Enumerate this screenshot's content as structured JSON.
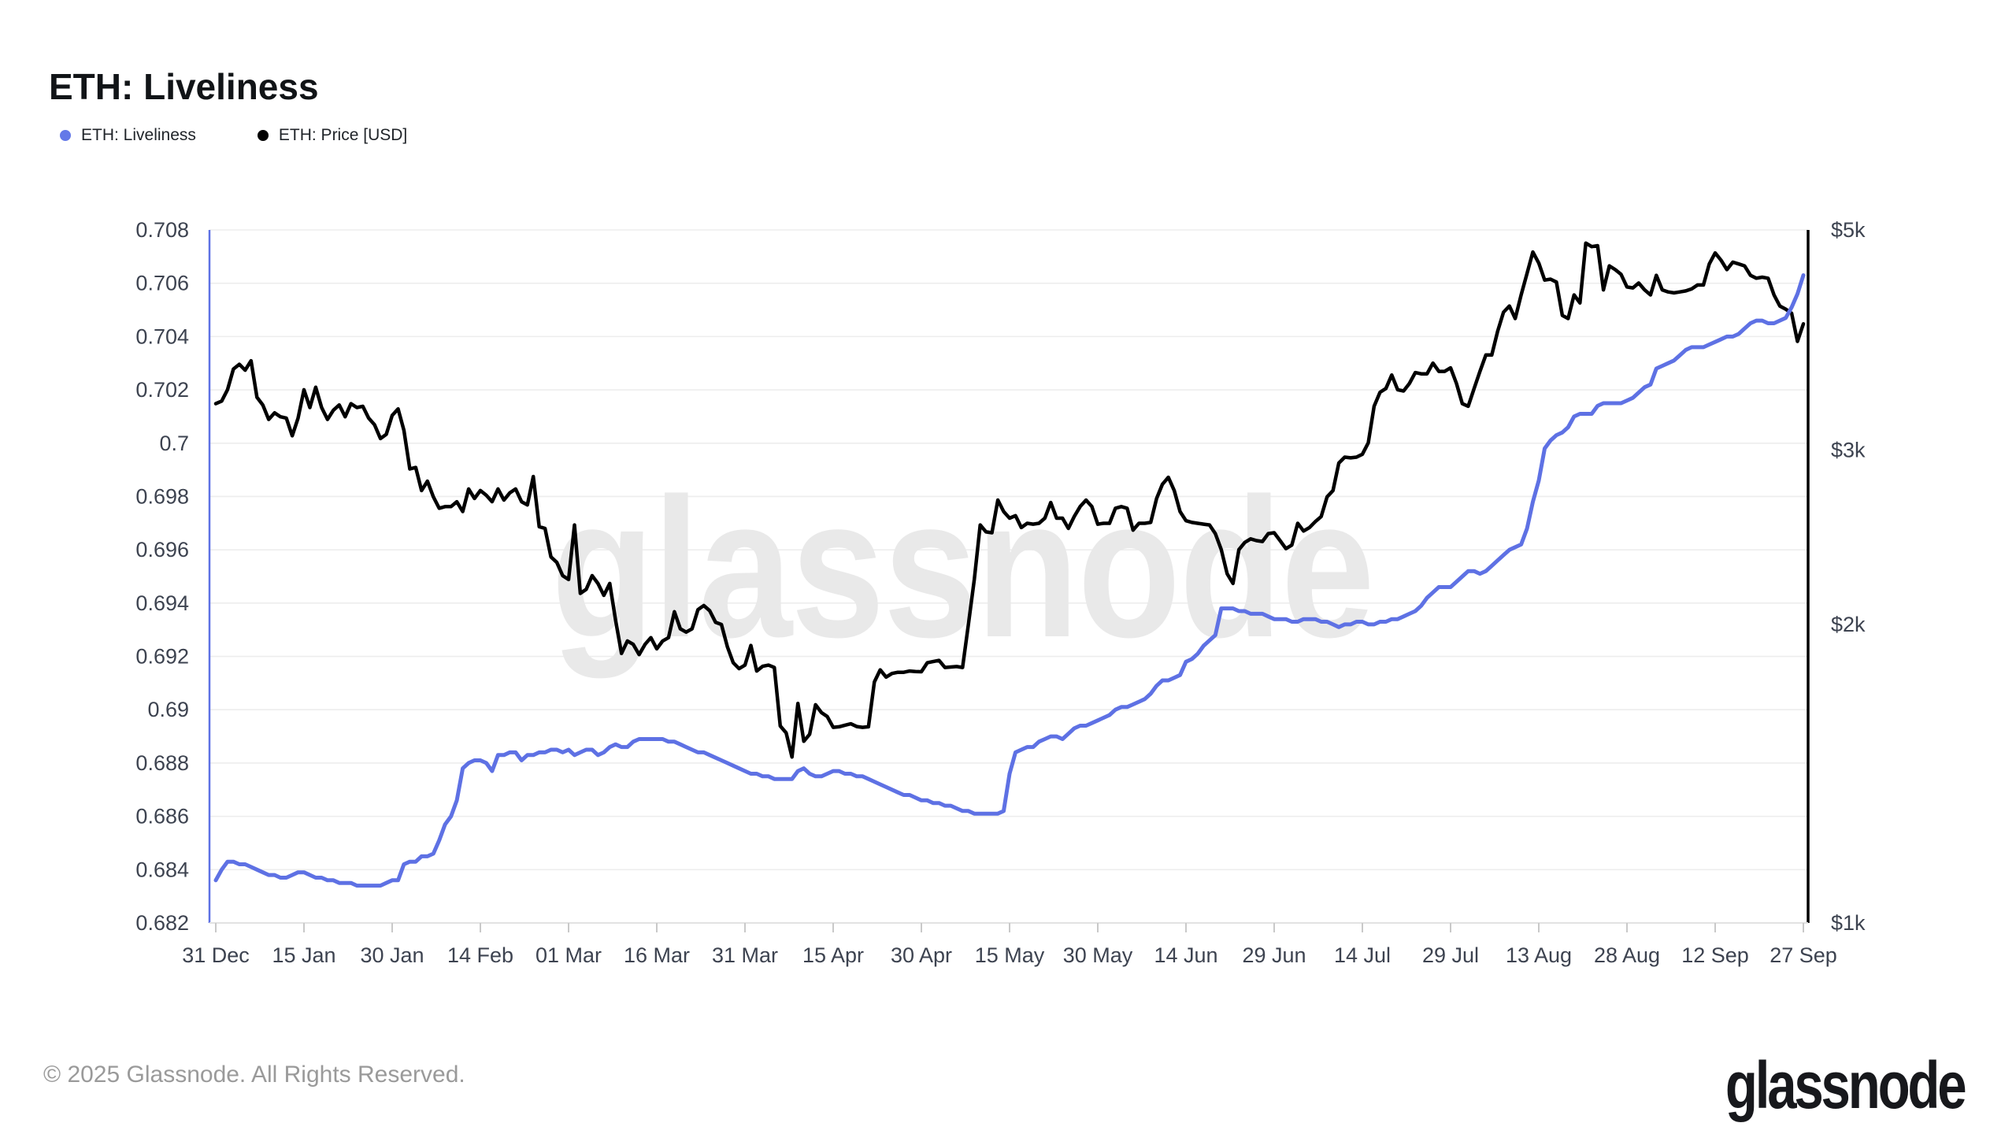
{
  "header": {
    "title": "ETH: Liveliness"
  },
  "legend": [
    {
      "label": "ETH: Liveliness",
      "color": "#6479E8"
    },
    {
      "label": "ETH: Price [USD]",
      "color": "#000000"
    }
  ],
  "watermark": {
    "text": "glassnode"
  },
  "footer": {
    "copyright": "© 2025 Glassnode. All Rights Reserved.",
    "logo": "glassnode"
  },
  "colors": {
    "liveliness_line": "#5E71E4",
    "price_line": "#000000",
    "grid_line": "#ededed",
    "axis_bottom": "#e2e2e2",
    "tick_mark": "#c9c9c9",
    "tick_label": "#3d4350",
    "watermark": "#e9e9e9"
  },
  "chart_data": {
    "type": "line",
    "title": "ETH: Liveliness",
    "grid": "horizontal",
    "legend_position": "top-left",
    "x_axis": {
      "kind": "date",
      "start": "31 Dec",
      "end": "27 Sep",
      "days_span": 270,
      "tick_interval_days": 15,
      "tick_labels": [
        "31 Dec",
        "15 Jan",
        "30 Jan",
        "14 Feb",
        "01 Mar",
        "16 Mar",
        "31 Mar",
        "15 Apr",
        "30 Apr",
        "15 May",
        "30 May",
        "14 Jun",
        "29 Jun",
        "14 Jul",
        "29 Jul",
        "13 Aug",
        "28 Aug",
        "12 Sep",
        "27 Sep"
      ]
    },
    "y_left": {
      "label": "ETH: Liveliness",
      "scale": "linear",
      "min": 0.682,
      "max": 0.708,
      "ticks": [
        0.708,
        0.706,
        0.704,
        0.702,
        0.7,
        0.698,
        0.696,
        0.694,
        0.692,
        0.69,
        0.688,
        0.686,
        0.684,
        0.682
      ]
    },
    "y_right": {
      "label": "ETH: Price [USD]",
      "scale": "log",
      "min": 1000,
      "max": 5000,
      "tick_labels": [
        "$5k",
        "$3k",
        "$2k",
        "$1k"
      ],
      "tick_values": [
        5000,
        3000,
        2000,
        1000
      ]
    },
    "series": [
      {
        "name": "ETH: Liveliness",
        "axis": "left",
        "color": "#5E71E4",
        "start_day": 0,
        "day_interval": 1,
        "values": [
          0.6836,
          0.684,
          0.6843,
          0.6843,
          0.6842,
          0.6842,
          0.6841,
          0.684,
          0.6839,
          0.6838,
          0.6838,
          0.6837,
          0.6837,
          0.6838,
          0.6839,
          0.6839,
          0.6838,
          0.6837,
          0.6837,
          0.6836,
          0.6836,
          0.6835,
          0.6835,
          0.6835,
          0.6834,
          0.6834,
          0.6834,
          0.6834,
          0.6834,
          0.6835,
          0.6836,
          0.6836,
          0.6842,
          0.6843,
          0.6843,
          0.6845,
          0.6845,
          0.6846,
          0.6851,
          0.6857,
          0.686,
          0.6866,
          0.6878,
          0.688,
          0.6881,
          0.6881,
          0.688,
          0.6877,
          0.6883,
          0.6883,
          0.6884,
          0.6884,
          0.6881,
          0.6883,
          0.6883,
          0.6884,
          0.6884,
          0.6885,
          0.6885,
          0.6884,
          0.6885,
          0.6883,
          0.6884,
          0.6885,
          0.6885,
          0.6883,
          0.6884,
          0.6886,
          0.6887,
          0.6886,
          0.6886,
          0.6888,
          0.6889,
          0.6889,
          0.6889,
          0.6889,
          0.6889,
          0.6888,
          0.6888,
          0.6887,
          0.6886,
          0.6885,
          0.6884,
          0.6884,
          0.6883,
          0.6882,
          0.6881,
          0.688,
          0.6879,
          0.6878,
          0.6877,
          0.6876,
          0.6876,
          0.6875,
          0.6875,
          0.6874,
          0.6874,
          0.6874,
          0.6874,
          0.6877,
          0.6878,
          0.6876,
          0.6875,
          0.6875,
          0.6876,
          0.6877,
          0.6877,
          0.6876,
          0.6876,
          0.6875,
          0.6875,
          0.6874,
          0.6873,
          0.6872,
          0.6871,
          0.687,
          0.6869,
          0.6868,
          0.6868,
          0.6867,
          0.6866,
          0.6866,
          0.6865,
          0.6865,
          0.6864,
          0.6864,
          0.6863,
          0.6862,
          0.6862,
          0.6861,
          0.6861,
          0.6861,
          0.6861,
          0.6861,
          0.6862,
          0.6876,
          0.6884,
          0.6885,
          0.6886,
          0.6886,
          0.6888,
          0.6889,
          0.689,
          0.689,
          0.6889,
          0.6891,
          0.6893,
          0.6894,
          0.6894,
          0.6895,
          0.6896,
          0.6897,
          0.6898,
          0.69,
          0.6901,
          0.6901,
          0.6902,
          0.6903,
          0.6904,
          0.6906,
          0.6909,
          0.6911,
          0.6911,
          0.6912,
          0.6913,
          0.6918,
          0.6919,
          0.6921,
          0.6924,
          0.6926,
          0.6928,
          0.6938,
          0.6938,
          0.6938,
          0.6937,
          0.6937,
          0.6936,
          0.6936,
          0.6936,
          0.6935,
          0.6934,
          0.6934,
          0.6934,
          0.6933,
          0.6933,
          0.6934,
          0.6934,
          0.6934,
          0.6933,
          0.6933,
          0.6932,
          0.6931,
          0.6932,
          0.6932,
          0.6933,
          0.6933,
          0.6932,
          0.6932,
          0.6933,
          0.6933,
          0.6934,
          0.6934,
          0.6935,
          0.6936,
          0.6937,
          0.6939,
          0.6942,
          0.6944,
          0.6946,
          0.6946,
          0.6946,
          0.6948,
          0.695,
          0.6952,
          0.6952,
          0.6951,
          0.6952,
          0.6954,
          0.6956,
          0.6958,
          0.696,
          0.6961,
          0.6962,
          0.6968,
          0.6978,
          0.6986,
          0.6998,
          0.7001,
          0.7003,
          0.7004,
          0.7006,
          0.701,
          0.7011,
          0.7011,
          0.7011,
          0.7014,
          0.7015,
          0.7015,
          0.7015,
          0.7015,
          0.7016,
          0.7017,
          0.7019,
          0.7021,
          0.7022,
          0.7028,
          0.7029,
          0.703,
          0.7031,
          0.7033,
          0.7035,
          0.7036,
          0.7036,
          0.7036,
          0.7037,
          0.7038,
          0.7039,
          0.704,
          0.704,
          0.7041,
          0.7043,
          0.7045,
          0.7046,
          0.7046,
          0.7045,
          0.7045,
          0.7046,
          0.7047,
          0.7051,
          0.7056,
          0.7063
        ]
      },
      {
        "name": "ETH: Price [USD]",
        "axis": "right",
        "color": "#000000",
        "start_day": 0,
        "day_interval": 1,
        "values": [
          3340,
          3360,
          3450,
          3620,
          3660,
          3610,
          3690,
          3390,
          3330,
          3220,
          3270,
          3240,
          3230,
          3100,
          3230,
          3450,
          3310,
          3470,
          3310,
          3220,
          3290,
          3330,
          3240,
          3340,
          3310,
          3320,
          3230,
          3180,
          3080,
          3110,
          3250,
          3300,
          3140,
          2870,
          2880,
          2730,
          2790,
          2690,
          2620,
          2630,
          2630,
          2660,
          2600,
          2740,
          2680,
          2730,
          2700,
          2660,
          2740,
          2670,
          2715,
          2740,
          2660,
          2640,
          2820,
          2510,
          2500,
          2340,
          2310,
          2240,
          2220,
          2520,
          2150,
          2170,
          2240,
          2200,
          2140,
          2200,
          2020,
          1870,
          1925,
          1910,
          1865,
          1910,
          1940,
          1890,
          1925,
          1940,
          2060,
          1980,
          1965,
          1980,
          2070,
          2090,
          2065,
          2010,
          2000,
          1900,
          1830,
          1805,
          1820,
          1905,
          1795,
          1815,
          1820,
          1810,
          1580,
          1555,
          1470,
          1665,
          1525,
          1550,
          1660,
          1630,
          1615,
          1575,
          1577,
          1583,
          1588,
          1578,
          1575,
          1577,
          1750,
          1800,
          1770,
          1785,
          1790,
          1790,
          1795,
          1793,
          1792,
          1830,
          1835,
          1840,
          1810,
          1812,
          1814,
          1810,
          2000,
          2220,
          2520,
          2480,
          2475,
          2670,
          2600,
          2560,
          2575,
          2505,
          2530,
          2525,
          2530,
          2560,
          2655,
          2560,
          2560,
          2500,
          2570,
          2630,
          2670,
          2630,
          2525,
          2530,
          2530,
          2620,
          2630,
          2620,
          2490,
          2530,
          2530,
          2535,
          2680,
          2770,
          2815,
          2730,
          2600,
          2545,
          2535,
          2530,
          2525,
          2520,
          2470,
          2380,
          2250,
          2200,
          2380,
          2420,
          2440,
          2430,
          2425,
          2470,
          2475,
          2430,
          2385,
          2405,
          2530,
          2485,
          2505,
          2540,
          2570,
          2690,
          2730,
          2910,
          2950,
          2945,
          2950,
          2970,
          3050,
          3320,
          3430,
          3460,
          3570,
          3450,
          3440,
          3500,
          3590,
          3580,
          3580,
          3670,
          3600,
          3600,
          3630,
          3500,
          3340,
          3320,
          3460,
          3600,
          3740,
          3740,
          3950,
          4130,
          4190,
          4070,
          4300,
          4520,
          4750,
          4630,
          4450,
          4460,
          4430,
          4100,
          4070,
          4300,
          4220,
          4850,
          4810,
          4820,
          4350,
          4600,
          4560,
          4510,
          4380,
          4370,
          4420,
          4350,
          4300,
          4500,
          4350,
          4330,
          4320,
          4330,
          4340,
          4360,
          4400,
          4400,
          4620,
          4740,
          4660,
          4560,
          4640,
          4620,
          4600,
          4500,
          4470,
          4480,
          4470,
          4300,
          4190,
          4160,
          4120,
          3860,
          4020
        ]
      }
    ]
  }
}
